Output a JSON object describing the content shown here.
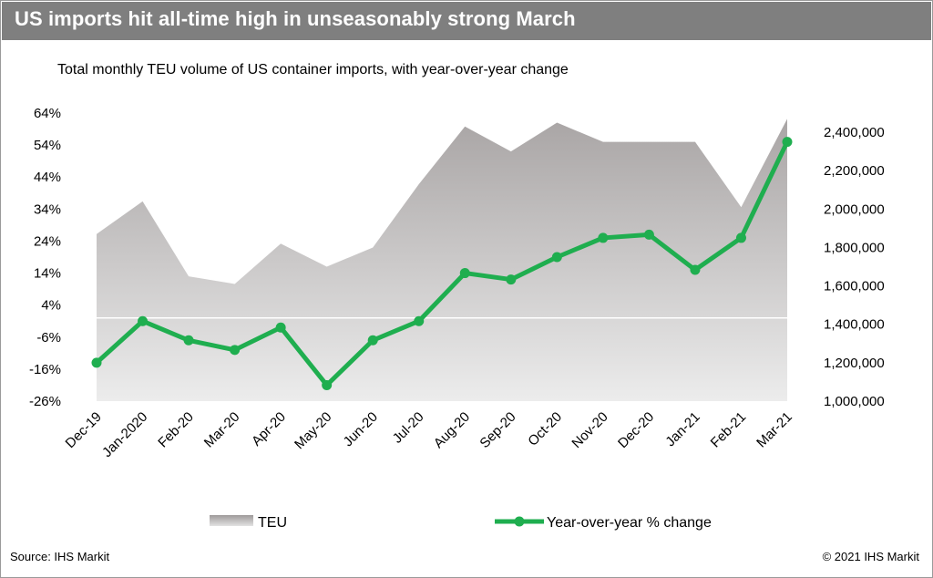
{
  "header": {
    "title": "US imports hit all-time high in unseasonably strong March",
    "subtitle": "Total monthly TEU volume of US container imports, with year-over-year change"
  },
  "footer": {
    "source": "Source: IHS Markit",
    "copyright": "© 2021 IHS Markit"
  },
  "chart_data": {
    "type": "area+line",
    "categories": [
      "Dec-19",
      "Jan-2020",
      "Feb-20",
      "Mar-20",
      "Apr-20",
      "May-20",
      "Jun-20",
      "Jul-20",
      "Aug-20",
      "Sep-20",
      "Oct-20",
      "Nov-20",
      "Dec-20",
      "Jan-21",
      "Feb-21",
      "Mar-21"
    ],
    "series": [
      {
        "name": "TEU",
        "type": "area",
        "axis": "right",
        "color": "#a6a6a6",
        "values": [
          1870000,
          2040000,
          1650000,
          1610000,
          1820000,
          1700000,
          1800000,
          2130000,
          2430000,
          2300000,
          2450000,
          2350000,
          2350000,
          2350000,
          2010000,
          2470000
        ]
      },
      {
        "name": "Year-over-year % change",
        "type": "line",
        "axis": "left",
        "color": "#1fae4f",
        "values": [
          -14,
          -1,
          -7,
          -10,
          -3,
          -21,
          -7,
          -1,
          14,
          12,
          19,
          25,
          26,
          15,
          25,
          55
        ]
      }
    ],
    "left_axis": {
      "ticks": [
        "64%",
        "54%",
        "44%",
        "34%",
        "24%",
        "14%",
        "4%",
        "-6%",
        "-16%",
        "-26%"
      ],
      "min": -26,
      "max": 64
    },
    "right_axis": {
      "ticks": [
        "2,400,000",
        "2,200,000",
        "2,000,000",
        "1,800,000",
        "1,600,000",
        "1,400,000",
        "1,200,000",
        "1,000,000"
      ],
      "min": 1000000,
      "max": 2500000
    },
    "legend": [
      {
        "label": "TEU",
        "kind": "area"
      },
      {
        "label": "Year-over-year % change",
        "kind": "line"
      }
    ],
    "legend_position": "bottom",
    "grid": false
  }
}
